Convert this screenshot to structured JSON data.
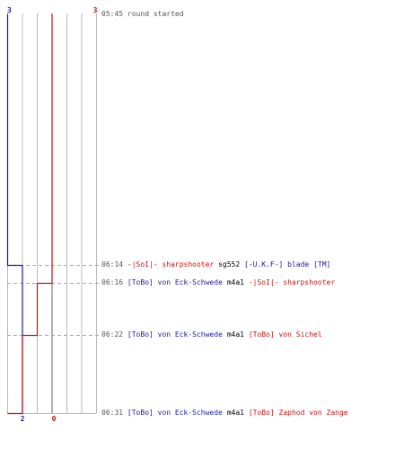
{
  "colors": {
    "blue": "#1a1aaa",
    "red": "#cc1111",
    "grid": "#bbbbbb",
    "dash": "#aaaaaa",
    "time": "#555555"
  },
  "chart_data": {
    "type": "line",
    "title": "",
    "ylabel": "",
    "xlabel": "",
    "y_events": [
      "05:45",
      "06:14",
      "06:16",
      "06:22",
      "06:31"
    ],
    "series": [
      {
        "name": "",
        "team": "blue",
        "values": [
          3,
          2,
          2,
          2,
          2
        ]
      },
      {
        "name": "",
        "team": "red",
        "values": [
          3,
          3,
          2,
          1,
          0
        ]
      }
    ],
    "labels": {
      "blue_start": "3",
      "red_start": "3",
      "blue_end": "2",
      "red_end": "0"
    },
    "xlim": [
      0,
      6
    ]
  },
  "events": [
    {
      "time": "05:45",
      "text": "round started"
    },
    {
      "time": "06:14",
      "killer": "-|SoI|- sharpshooter",
      "killer_team": "red",
      "weapon": "sg552",
      "victim": "[-U.K.F-] blade [TM]",
      "victim_team": "blue"
    },
    {
      "time": "06:16",
      "killer": "[ToBo] von Eck-Schwede",
      "killer_team": "blue",
      "weapon": "m4a1",
      "victim": "-|SoI|- sharpshooter",
      "victim_team": "red"
    },
    {
      "time": "06:22",
      "killer": "[ToBo] von Eck-Schwede",
      "killer_team": "blue",
      "weapon": "m4a1",
      "victim": "[ToBo] von Sichel",
      "victim_team": "red"
    },
    {
      "time": "06:31",
      "killer": "[ToBo] von Eck-Schwede",
      "killer_team": "blue",
      "weapon": "m4a1",
      "victim": "[ToBo] Zaphod von Zange",
      "victim_team": "red"
    }
  ]
}
